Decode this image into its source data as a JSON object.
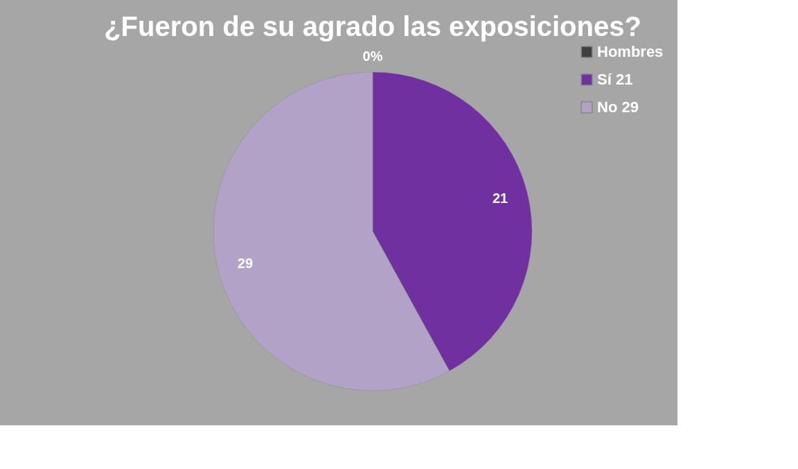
{
  "chart_data": {
    "type": "pie",
    "title": "¿Fueron de su agrado las exposiciones?",
    "categories": [
      "Hombres",
      "Sí 21",
      "No 29"
    ],
    "values": [
      0,
      21,
      29
    ],
    "colors": [
      "#404040",
      "#7030a0",
      "#b3a2c7"
    ],
    "value_labels": [
      "0%",
      "21",
      "29"
    ],
    "legend": "right"
  }
}
